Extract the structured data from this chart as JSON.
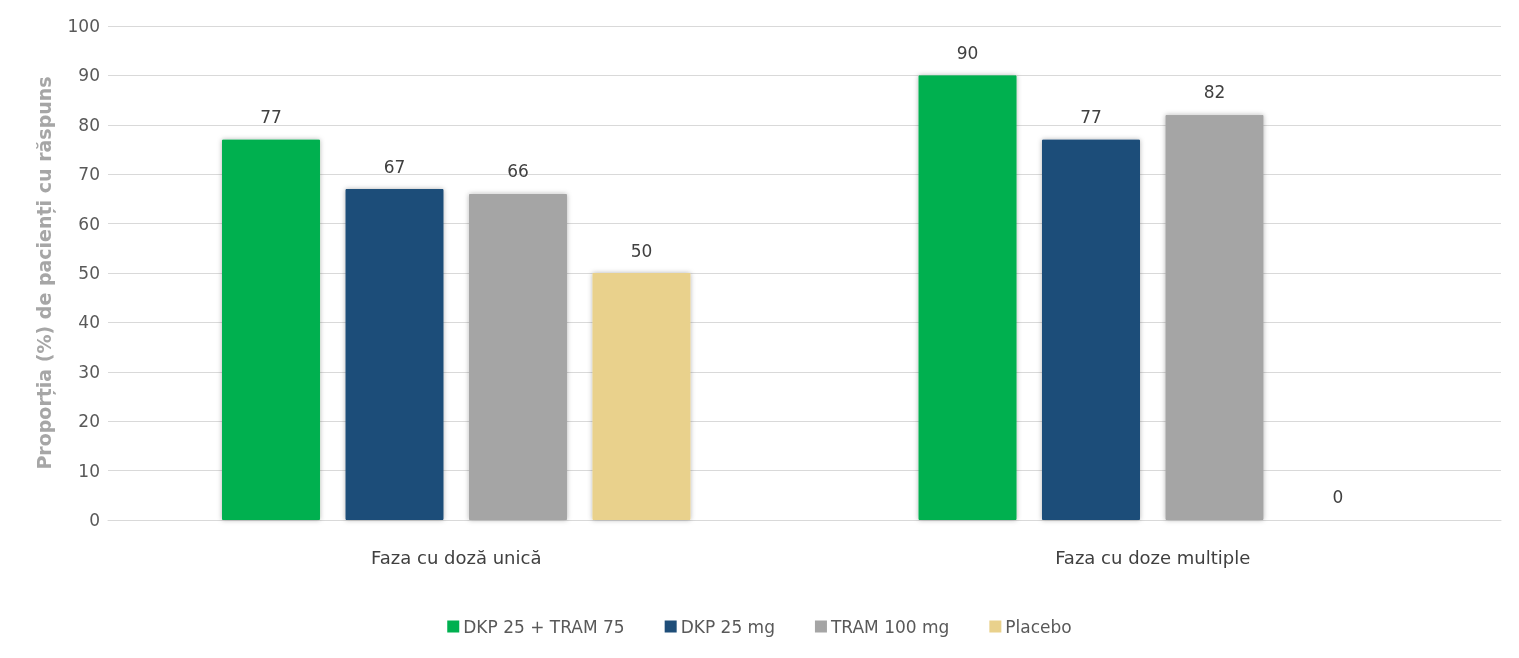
{
  "chart_data": {
    "type": "bar",
    "ylabel": "Proporția (%) de pacienți cu răspuns",
    "categories": [
      "Faza cu doză unică",
      "Faza cu doze multiple"
    ],
    "series": [
      {
        "name": "DKP 25 + TRAM 75",
        "color": "#00b050",
        "values": [
          77,
          90
        ]
      },
      {
        "name": "DKP 25 mg",
        "color": "#1f4e79",
        "values": [
          67,
          77
        ]
      },
      {
        "name": "TRAM 100 mg",
        "color": "#a5a5a5",
        "values": [
          66,
          82
        ]
      },
      {
        "name": "Placebo",
        "color": "#e9d18c",
        "values": [
          50,
          0
        ]
      }
    ],
    "ylim": [
      0,
      100
    ],
    "yticks": [
      0,
      10,
      20,
      30,
      40,
      50,
      60,
      70,
      80,
      90,
      100
    ],
    "grid": "y",
    "legend": "bottom",
    "data_labels": true
  }
}
